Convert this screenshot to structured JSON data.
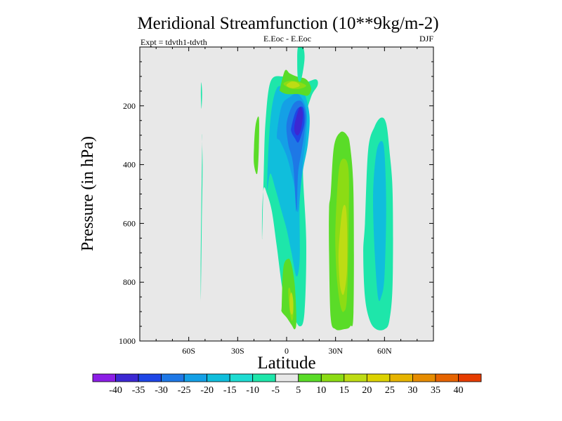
{
  "chart_data": {
    "type": "contour",
    "title": "Meridional Streamfunction (10**9kg/m-2)",
    "left_label": "Expt = tdvth1-tdvth",
    "center_label": "E.Eoc - E.Eoc",
    "right_label": "DJF",
    "xlabel": "Latitude",
    "ylabel": "Pressure (in hPa)",
    "xlim": [
      -90,
      90
    ],
    "ylim": [
      1000,
      0
    ],
    "x_ticks": [
      {
        "value": -60,
        "label": "60S"
      },
      {
        "value": -30,
        "label": "30S"
      },
      {
        "value": 0,
        "label": "0"
      },
      {
        "value": 30,
        "label": "30N"
      },
      {
        "value": 60,
        "label": "60N"
      }
    ],
    "y_ticks": [
      {
        "value": 200,
        "label": "200"
      },
      {
        "value": 400,
        "label": "400"
      },
      {
        "value": 600,
        "label": "600"
      },
      {
        "value": 800,
        "label": "800"
      },
      {
        "value": 1000,
        "label": "1000"
      }
    ],
    "background_color": "#e8e8e8",
    "colorbar": {
      "levels": [
        "-40",
        "-35",
        "-30",
        "-25",
        "-20",
        "-15",
        "-10",
        "-5",
        "5",
        "10",
        "15",
        "20",
        "25",
        "30",
        "35",
        "40"
      ],
      "colors": [
        "#8c1ee6",
        "#3c28d2",
        "#1e46e6",
        "#1e78e6",
        "#14a0e6",
        "#10bedc",
        "#1edcd2",
        "#1ee6aa",
        "#e8e8e8",
        "#5adc28",
        "#8cdc14",
        "#bedc14",
        "#dcd200",
        "#e6b400",
        "#e68c00",
        "#e66400",
        "#e63c00"
      ]
    },
    "regions": [
      {
        "name": "sh-60s-band",
        "color": "#1ee6aa",
        "lat": [
          -52.5,
          -52,
          -51.5,
          -52,
          -51.8,
          -52.3,
          -52.7,
          -52.6
        ],
        "p": [
          820,
          600,
          400,
          300,
          340,
          550,
          750,
          860
        ]
      },
      {
        "name": "sh-upper-sliver",
        "color": "#1ee6aa",
        "lat": [
          -52.3,
          -51.8,
          -52.2,
          -52.6
        ],
        "p": [
          120,
          160,
          210,
          160
        ]
      },
      {
        "name": "tropical-neg-outer",
        "color": "#1ee6aa",
        "lat": [
          -15,
          -14,
          -13,
          -10,
          -3,
          5,
          12,
          18,
          19,
          15,
          11,
          10,
          12,
          11,
          8,
          3,
          -2,
          -6,
          -9,
          -12,
          -14,
          -15
        ],
        "p": [
          650,
          420,
          260,
          120,
          100,
          125,
          120,
          110,
          130,
          170,
          260,
          420,
          660,
          900,
          950,
          900,
          840,
          680,
          560,
          500,
          480,
          560
        ]
      },
      {
        "name": "tropical-neg-10",
        "color": "#10bedc",
        "lat": [
          -12,
          -10,
          -6,
          0,
          4,
          10,
          14,
          13,
          10,
          8,
          8,
          6,
          3,
          0,
          -3,
          -7,
          -10
        ],
        "p": [
          480,
          250,
          140,
          145,
          160,
          150,
          230,
          330,
          420,
          520,
          720,
          780,
          700,
          620,
          560,
          480,
          430
        ]
      },
      {
        "name": "tropical-neg-15",
        "color": "#14a0e6",
        "lat": [
          -6,
          -3,
          2,
          7,
          12,
          12,
          10,
          7,
          5,
          3,
          0,
          -4
        ],
        "p": [
          300,
          200,
          170,
          160,
          210,
          300,
          390,
          560,
          480,
          430,
          370,
          320
        ]
      },
      {
        "name": "tropical-neg-20",
        "color": "#1e78e6",
        "lat": [
          0,
          4,
          9,
          12,
          11,
          9,
          7,
          6,
          4,
          1
        ],
        "p": [
          260,
          195,
          185,
          230,
          290,
          360,
          430,
          560,
          400,
          330
        ]
      },
      {
        "name": "tropical-neg-25",
        "color": "#1e46e6",
        "lat": [
          3,
          6,
          10,
          11,
          9,
          7,
          5,
          3
        ],
        "p": [
          270,
          215,
          205,
          255,
          300,
          325,
          310,
          290
        ]
      },
      {
        "name": "tropical-neg-30",
        "color": "#3c28d2",
        "lat": [
          5,
          8,
          10,
          9,
          7,
          5
        ],
        "p": [
          260,
          205,
          225,
          275,
          300,
          290
        ]
      },
      {
        "name": "upper-pos-outer",
        "color": "#5adc28",
        "lat": [
          -4,
          -1,
          2,
          6,
          12,
          15,
          13,
          7,
          0,
          -4
        ],
        "p": [
          140,
          80,
          90,
          100,
          110,
          140,
          165,
          160,
          160,
          150
        ]
      },
      {
        "name": "upper-pos-10",
        "color": "#8cdc14",
        "lat": [
          -2,
          2,
          8,
          12,
          8,
          2
        ],
        "p": [
          125,
          115,
          120,
          132,
          142,
          140
        ]
      },
      {
        "name": "upper-pos-15",
        "color": "#bedc14",
        "lat": [
          0,
          3,
          6,
          8,
          4,
          1
        ],
        "p": [
          128,
          118,
          120,
          132,
          140,
          136
        ]
      },
      {
        "name": "top-neg-sliver",
        "color": "#1ee6aa",
        "lat": [
          7,
          10,
          11,
          9,
          7,
          6.5
        ],
        "p": [
          0,
          0,
          40,
          110,
          110,
          50
        ]
      },
      {
        "name": "sh-20s-pos",
        "color": "#5adc28",
        "lat": [
          -20,
          -19,
          -17,
          -17,
          -18,
          -20
        ],
        "p": [
          340,
          265,
          240,
          340,
          430,
          400
        ]
      },
      {
        "name": "eq-lower-pos",
        "color": "#5adc28",
        "lat": [
          -3,
          -2,
          1,
          3,
          5,
          6,
          5,
          3,
          0,
          -3
        ],
        "p": [
          880,
          750,
          720,
          740,
          810,
          930,
          960,
          945,
          920,
          900
        ]
      },
      {
        "name": "eq-lower-pos-10",
        "color": "#8cdc14",
        "lat": [
          1,
          2,
          3,
          4,
          4,
          3,
          2
        ],
        "p": [
          830,
          820,
          850,
          880,
          920,
          930,
          900
        ]
      },
      {
        "name": "eq-lower-pos-15",
        "color": "#bedc14",
        "lat": [
          2,
          3,
          4,
          4,
          3,
          2
        ],
        "p": [
          850,
          835,
          860,
          900,
          910,
          890
        ]
      },
      {
        "name": "nh-30n-pos",
        "color": "#5adc28",
        "lat": [
          27,
          29,
          33,
          37,
          39,
          41,
          41,
          39,
          35,
          30,
          27,
          26,
          26
        ],
        "p": [
          500,
          340,
          290,
          300,
          340,
          500,
          900,
          950,
          960,
          960,
          920,
          700,
          550
        ]
      },
      {
        "name": "nh-30n-pos-10",
        "color": "#8cdc14",
        "lat": [
          30,
          32,
          35,
          38,
          38,
          37,
          35,
          33,
          31,
          30
        ],
        "p": [
          600,
          420,
          380,
          420,
          600,
          850,
          900,
          880,
          800,
          700
        ]
      },
      {
        "name": "nh-30n-pos-15",
        "color": "#bedc14",
        "lat": [
          32,
          34,
          36,
          37,
          37,
          35,
          33,
          32
        ],
        "p": [
          680,
          560,
          540,
          600,
          760,
          840,
          820,
          750
        ]
      },
      {
        "name": "nh-60n-neg",
        "color": "#1ee6aa",
        "lat": [
          48,
          50,
          54,
          58,
          61,
          63,
          65,
          65,
          63,
          60,
          55,
          51,
          48,
          47
        ],
        "p": [
          600,
          350,
          270,
          240,
          260,
          350,
          500,
          800,
          930,
          960,
          960,
          930,
          850,
          700
        ]
      },
      {
        "name": "nh-60n-neg-10",
        "color": "#10bedc",
        "lat": [
          53,
          55,
          58,
          60,
          61,
          60,
          58,
          56,
          54
        ],
        "p": [
          500,
          360,
          320,
          360,
          550,
          780,
          850,
          850,
          700
        ]
      }
    ]
  }
}
